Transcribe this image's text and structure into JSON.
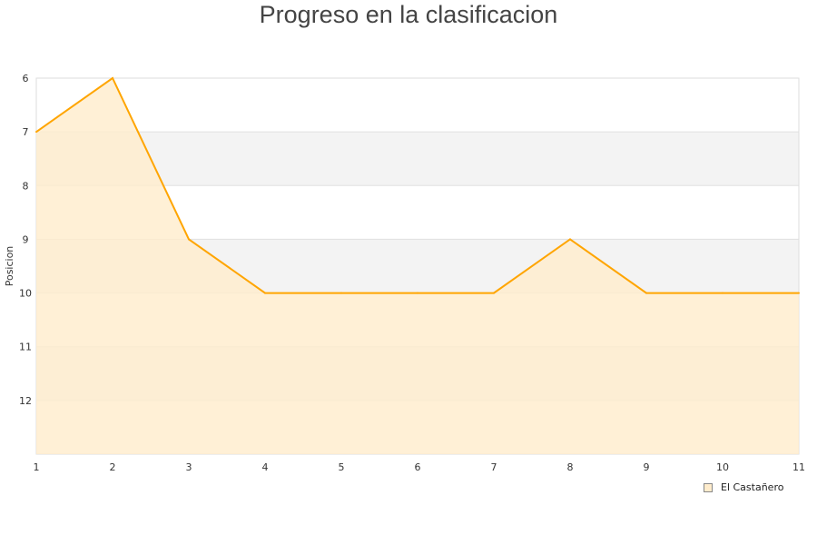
{
  "chart_data": {
    "type": "area",
    "title": "Progreso en la clasificacion",
    "xlabel": "",
    "ylabel": "Posicion",
    "x": [
      1,
      2,
      3,
      4,
      5,
      6,
      7,
      8,
      9,
      10,
      11
    ],
    "series": [
      {
        "name": "El Castañero",
        "values": [
          7,
          6,
          9,
          10,
          10,
          10,
          10,
          9,
          10,
          10,
          10
        ]
      }
    ],
    "xlim": [
      1,
      11
    ],
    "ylim": [
      6,
      13
    ],
    "y_inverted": true,
    "yticks": [
      6,
      7,
      8,
      9,
      10,
      11,
      12
    ],
    "xticks": [
      1,
      2,
      3,
      4,
      5,
      6,
      7,
      8,
      9,
      10,
      11
    ],
    "grid": true,
    "legend_position": "bottom-right",
    "colors": {
      "line": "#ffa500",
      "fill": "#ffeccc",
      "band": "#f3f3f3"
    }
  }
}
